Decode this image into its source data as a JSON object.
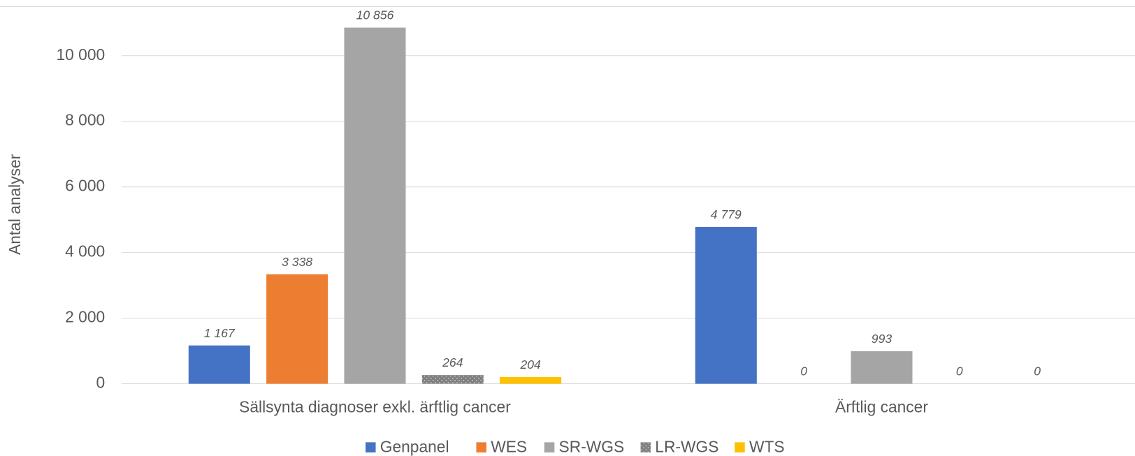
{
  "chart_data": {
    "type": "bar",
    "y_label": "Antal analyser",
    "categories": [
      "Sällsynta diagnoser exkl. ärftlig cancer",
      "Ärftlig cancer"
    ],
    "series": [
      {
        "name": "Genpanel",
        "color": "#4472c4",
        "values": [
          1167,
          4779
        ],
        "value_labels": [
          "1 167",
          "4 779"
        ]
      },
      {
        "name": "WES",
        "color": "#ed7d31",
        "values": [
          3338,
          0
        ],
        "value_labels": [
          "3 338",
          "0"
        ]
      },
      {
        "name": "SR-WGS",
        "color": "#a5a5a5",
        "values": [
          10856,
          993
        ],
        "value_labels": [
          "10 856",
          "993"
        ]
      },
      {
        "name": "LR-WGS",
        "color": "#7f7f7f",
        "values": [
          264,
          0
        ],
        "value_labels": [
          "264",
          "0"
        ]
      },
      {
        "name": "WTS",
        "color": "#ffc000",
        "values": [
          204,
          0
        ],
        "value_labels": [
          "204",
          "0"
        ]
      }
    ],
    "ylim": [
      0,
      11500
    ],
    "yticks": [
      0,
      {
        "value": 2000,
        "label": "2 000"
      },
      {
        "value": 4000,
        "label": "4 000"
      },
      {
        "value": 6000,
        "label": "6 000"
      },
      {
        "value": 8000,
        "label": "8 000"
      },
      {
        "value": 10000,
        "label": "10 000"
      }
    ],
    "grid": true,
    "legend": "bottom"
  }
}
